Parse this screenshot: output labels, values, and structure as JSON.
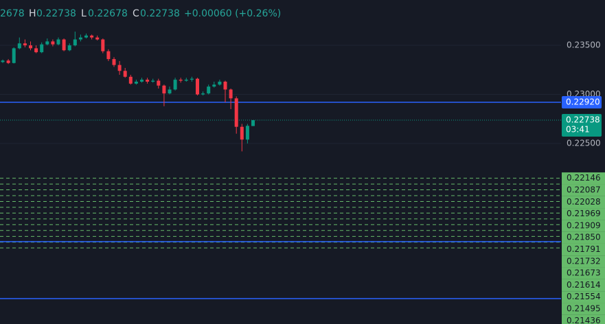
{
  "chart_data": {
    "type": "candlestick",
    "legend_items": [
      "2678",
      "H",
      "0.22738",
      "L",
      "0.22678",
      "C",
      "0.22738",
      "+0.00060 (+0.26%)"
    ],
    "open": [
      0.2333,
      0.23345,
      0.2332,
      0.2347,
      0.2352,
      0.235,
      0.2347,
      0.2343,
      0.2351,
      0.2354,
      0.2351,
      0.2356,
      0.2345,
      0.235,
      0.2356,
      0.2358,
      0.236,
      0.2358,
      0.2356,
      0.2344,
      0.2336,
      0.233,
      0.2324,
      0.2318,
      0.2311,
      0.2313,
      0.2315,
      0.2313,
      0.2314,
      0.2309,
      0.2301,
      0.2305,
      0.2315,
      0.2314,
      0.2315,
      0.2316,
      0.23,
      0.2301,
      0.2308,
      0.231,
      0.2313,
      0.2305,
      0.2296,
      0.2267,
      0.2254,
      0.22678
    ],
    "high": [
      0.23355,
      0.2336,
      0.2348,
      0.2358,
      0.2356,
      0.2354,
      0.235,
      0.2353,
      0.2357,
      0.2356,
      0.2358,
      0.2357,
      0.2352,
      0.2364,
      0.2361,
      0.2362,
      0.2361,
      0.236,
      0.2357,
      0.2346,
      0.2338,
      0.2334,
      0.2327,
      0.232,
      0.2315,
      0.2317,
      0.2317,
      0.2316,
      0.2316,
      0.231,
      0.2308,
      0.2317,
      0.2317,
      0.2317,
      0.2318,
      0.2317,
      0.2303,
      0.231,
      0.2313,
      0.2315,
      0.2314,
      0.2306,
      0.2298,
      0.227,
      0.227,
      0.22738
    ],
    "low": [
      0.2332,
      0.2331,
      0.23315,
      0.2346,
      0.2348,
      0.2345,
      0.2342,
      0.2342,
      0.235,
      0.2349,
      0.235,
      0.2344,
      0.2344,
      0.2349,
      0.2354,
      0.2357,
      0.2356,
      0.2355,
      0.2342,
      0.2334,
      0.2328,
      0.232,
      0.2317,
      0.231,
      0.231,
      0.2312,
      0.2311,
      0.2312,
      0.2306,
      0.2288,
      0.23,
      0.2304,
      0.2312,
      0.2313,
      0.2313,
      0.2299,
      0.2299,
      0.23,
      0.2307,
      0.2309,
      0.2292,
      0.2285,
      0.226,
      0.2242,
      0.225,
      0.22678
    ],
    "close": [
      0.23345,
      0.2332,
      0.2347,
      0.2352,
      0.235,
      0.2347,
      0.2343,
      0.2351,
      0.2354,
      0.2351,
      0.2356,
      0.2345,
      0.235,
      0.2356,
      0.2358,
      0.236,
      0.2358,
      0.2356,
      0.2344,
      0.2336,
      0.233,
      0.2324,
      0.2318,
      0.2311,
      0.2313,
      0.2315,
      0.2313,
      0.2314,
      0.2309,
      0.2301,
      0.2305,
      0.2315,
      0.2314,
      0.2315,
      0.2316,
      0.23,
      0.2301,
      0.2308,
      0.231,
      0.2313,
      0.2305,
      0.2296,
      0.2267,
      0.2254,
      0.2268,
      0.22738
    ],
    "up_color": "#089981",
    "down_color": "#f23645",
    "ylim": [
      0.20661,
      0.23962
    ],
    "yticks": [
      {
        "value": 0.235,
        "label": "0.23500"
      },
      {
        "value": 0.23,
        "label": "0.23000"
      },
      {
        "value": 0.225,
        "label": "0.22500"
      }
    ],
    "grid": true,
    "alert_line": {
      "value": 0.2292,
      "label": "0.22920",
      "color": "#2962ff"
    },
    "last_price": {
      "value": 0.22738,
      "label": "0.22738",
      "countdown": "03:41",
      "color": "#089981"
    },
    "levels": {
      "color": "#66bb6a",
      "values": [
        0.22146,
        0.22087,
        0.22028,
        0.21969,
        0.21909,
        0.2185,
        0.21791,
        0.21732,
        0.21673,
        0.21614,
        0.21554,
        0.21495,
        0.21436
      ],
      "labels": [
        "0.22146",
        "0.22087",
        "0.22028",
        "0.21969",
        "0.21909",
        "0.21850",
        "0.21791",
        "0.21732",
        "0.21673",
        "0.21614",
        "0.21554",
        "0.21495",
        "0.21436"
      ]
    },
    "trend_lines": {
      "color": "#2962ff",
      "values": [
        0.215,
        0.2092
      ]
    }
  }
}
